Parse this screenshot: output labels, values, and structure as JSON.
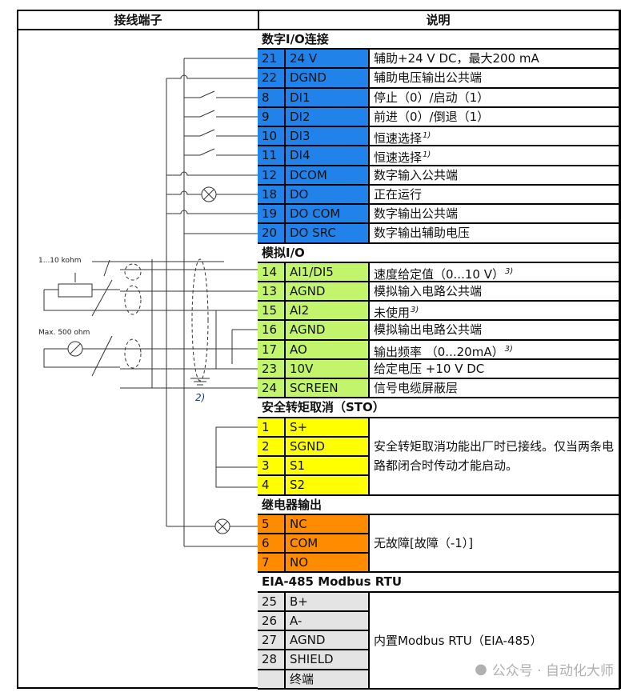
{
  "header": {
    "left": "接线端子",
    "right": "说明"
  },
  "colors": {
    "digital": "#2183ea",
    "analog": "#c3f56c",
    "sto": "#ffff00",
    "relay": "#ff8c00",
    "modbus": "#e4e4e4"
  },
  "sections": [
    {
      "title": "数字I/O连接",
      "color_key": "digital",
      "rows": [
        {
          "num": "21",
          "name": "24 V",
          "desc": "辅助+24 V DC，最大200 mA"
        },
        {
          "num": "22",
          "name": "DGND",
          "desc": "辅助电压输出公共端"
        },
        {
          "num": "8",
          "name": "DI1",
          "desc": "停止（0）/启动（1）"
        },
        {
          "num": "9",
          "name": "DI2",
          "desc": "前进（0）/倒退（1）"
        },
        {
          "num": "10",
          "name": "DI3",
          "desc": "恒速选择",
          "note": "1)"
        },
        {
          "num": "11",
          "name": "DI4",
          "desc": "恒速选择",
          "note": "1)"
        },
        {
          "num": "12",
          "name": "DCOM",
          "desc": "数字输入公共端"
        },
        {
          "num": "18",
          "name": "DO",
          "desc": "正在运行"
        },
        {
          "num": "19",
          "name": "DO COM",
          "desc": "数字输出公共端"
        },
        {
          "num": "20",
          "name": "DO SRC",
          "desc": "数字输出辅助电压"
        }
      ]
    },
    {
      "title": "模拟I/O",
      "color_key": "analog",
      "rows": [
        {
          "num": "14",
          "name": "AI1/DI5",
          "desc": "速度给定值（0...10 V）",
          "note": "3)"
        },
        {
          "num": "13",
          "name": "AGND",
          "desc": "模拟输入电路公共端"
        },
        {
          "num": "15",
          "name": "AI2",
          "desc": "未使用",
          "note": "3)"
        },
        {
          "num": "16",
          "name": "AGND",
          "desc": "模拟输出电路公共端"
        },
        {
          "num": "17",
          "name": "AO",
          "desc": "输出频率 （0...20mA）",
          "note": "3)"
        },
        {
          "num": "23",
          "name": "10V",
          "desc": "给定电压 +10 V DC"
        },
        {
          "num": "24",
          "name": "SCREEN",
          "desc": "信号电缆屏蔽层"
        }
      ]
    },
    {
      "title": "安全转矩取消（STO）",
      "color_key": "sto",
      "merged_desc": "安全转矩取消功能出厂时已接线。仅当两条电路都闭合时传动才能启动。",
      "rows": [
        {
          "num": "1",
          "name": "S+"
        },
        {
          "num": "2",
          "name": "SGND"
        },
        {
          "num": "3",
          "name": "S1"
        },
        {
          "num": "4",
          "name": "S2"
        }
      ]
    },
    {
      "title": "继电器输出",
      "color_key": "relay",
      "merged_desc": "无故障[故障（-1）]",
      "rows": [
        {
          "num": "5",
          "name": "NC"
        },
        {
          "num": "6",
          "name": "COM"
        },
        {
          "num": "7",
          "name": "NO"
        }
      ]
    },
    {
      "title": "EIA-485 Modbus RTU",
      "color_key": "modbus",
      "merged_desc": "内置Modbus RTU（EIA-485）",
      "rows": [
        {
          "num": "25",
          "name": "B+"
        },
        {
          "num": "26",
          "name": "A-"
        },
        {
          "num": "27",
          "name": "AGND"
        },
        {
          "num": "28",
          "name": "SHIELD"
        },
        {
          "num": "",
          "name": "终端"
        }
      ]
    }
  ],
  "diagram": {
    "pot_label": "1...10 kohm",
    "meter_label": "Max. 500 ohm",
    "note_2": "2)"
  },
  "watermark": "公众号 · 自动化大师"
}
